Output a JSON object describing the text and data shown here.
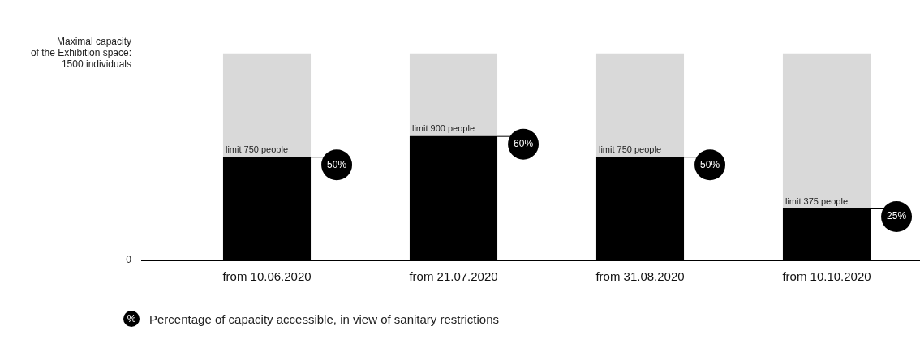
{
  "chart_data": {
    "type": "bar",
    "stacked": true,
    "categories": [
      "from 10.06.2020",
      "from 21.07.2020",
      "from 31.08.2020",
      "from 10.10.2020"
    ],
    "series": [
      {
        "color": "#000000",
        "values": [
          750,
          900,
          750,
          375
        ],
        "value_labels": [
          "limit 750 people",
          "limit 900 people",
          "limit 750 people",
          "limit 375 people"
        ]
      },
      {
        "color": "#d9d9d9",
        "values": [
          750,
          600,
          750,
          1125
        ]
      }
    ],
    "ylim": [
      0,
      1500
    ],
    "yticks": [
      0,
      {
        "value": 1500,
        "label": "Maximal capacity\nof the Exhibition space:\n1500 individuals"
      }
    ],
    "ref_lines": [
      {
        "axis": "y",
        "value": 1500
      }
    ],
    "legend": false,
    "annotations": [
      "50%",
      "60%",
      "50%",
      "25%",
      "%",
      "Percentage of capacity accessible, in view of sanitary restrictions"
    ]
  }
}
